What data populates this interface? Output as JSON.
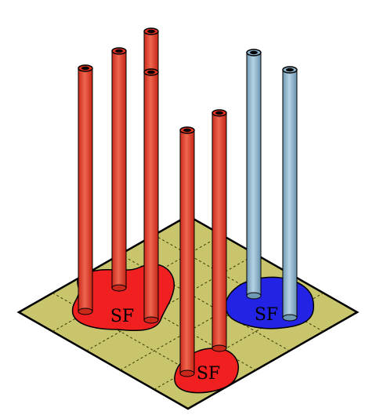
{
  "colors": {
    "board": "#c9c56c",
    "board_edge": "#000000",
    "grid_line": "#3a3a00",
    "red_fill": "#e8321e",
    "red_blob": "#f02020",
    "blue_fill": "#8db4cc",
    "blue_blob": "#2323e6"
  },
  "grid": {
    "rows": 5,
    "cols": 5
  },
  "regions": [
    {
      "id": "red-left",
      "label": "SF",
      "color": "red"
    },
    {
      "id": "red-bottom",
      "label": "SF",
      "color": "red"
    },
    {
      "id": "blue-right",
      "label": "SF",
      "color": "blue"
    }
  ],
  "tubes": [
    {
      "id": "tube-1",
      "color": "red"
    },
    {
      "id": "tube-2",
      "color": "red"
    },
    {
      "id": "tube-3",
      "color": "red"
    },
    {
      "id": "tube-4",
      "color": "red"
    },
    {
      "id": "tube-5",
      "color": "red"
    },
    {
      "id": "tube-6",
      "color": "red"
    },
    {
      "id": "tube-7",
      "color": "blue"
    },
    {
      "id": "tube-8",
      "color": "blue"
    }
  ]
}
